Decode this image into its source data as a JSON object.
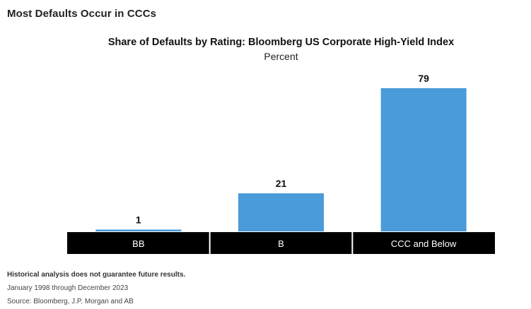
{
  "header": {
    "title": "Most Defaults Occur in CCCs"
  },
  "chart_data": {
    "type": "bar",
    "title": "Share of Defaults by Rating: Bloomberg US Corporate High-Yield Index",
    "subtitle": "Percent",
    "categories": [
      "BB",
      "B",
      "CCC and Below"
    ],
    "values": [
      1,
      21,
      79
    ],
    "ylim": [
      0,
      79
    ],
    "grid": false,
    "bar_color": "#4a9bd9",
    "category_band_color": "#000000"
  },
  "notes": {
    "disclaimer": "Historical analysis does not guarantee future results.",
    "period": "January 1998 through December 2023",
    "source": "Source: Bloomberg, J.P. Morgan and AB"
  }
}
